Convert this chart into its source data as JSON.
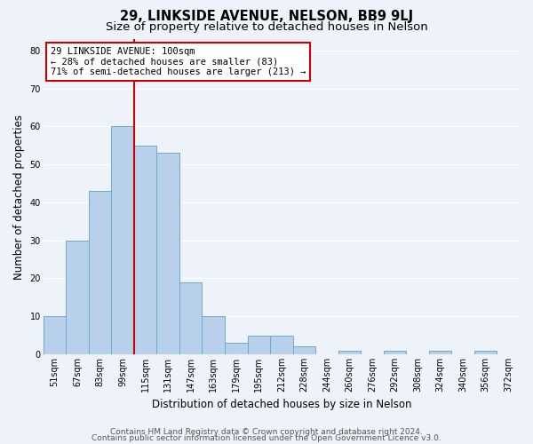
{
  "title": "29, LINKSIDE AVENUE, NELSON, BB9 9LJ",
  "subtitle": "Size of property relative to detached houses in Nelson",
  "xlabel": "Distribution of detached houses by size in Nelson",
  "ylabel": "Number of detached properties",
  "bin_labels": [
    "51sqm",
    "67sqm",
    "83sqm",
    "99sqm",
    "115sqm",
    "131sqm",
    "147sqm",
    "163sqm",
    "179sqm",
    "195sqm",
    "212sqm",
    "228sqm",
    "244sqm",
    "260sqm",
    "276sqm",
    "292sqm",
    "308sqm",
    "324sqm",
    "340sqm",
    "356sqm",
    "372sqm"
  ],
  "bar_values": [
    10,
    30,
    43,
    60,
    55,
    53,
    19,
    10,
    3,
    5,
    5,
    2,
    0,
    1,
    0,
    1,
    0,
    1,
    0,
    1,
    0
  ],
  "bar_color": "#b8d0ea",
  "bar_edgecolor": "#6aaad4",
  "ylim": [
    0,
    83
  ],
  "yticks": [
    0,
    10,
    20,
    30,
    40,
    50,
    60,
    70,
    80
  ],
  "property_line_color": "#cc0000",
  "annotation_title": "29 LINKSIDE AVENUE: 100sqm",
  "annotation_line1": "← 28% of detached houses are smaller (83)",
  "annotation_line2": "71% of semi-detached houses are larger (213) →",
  "annotation_box_facecolor": "#ffffff",
  "annotation_box_edgecolor": "#cc0000",
  "footer_line1": "Contains HM Land Registry data © Crown copyright and database right 2024.",
  "footer_line2": "Contains public sector information licensed under the Open Government Licence v3.0.",
  "background_color": "#eef2f9",
  "grid_color": "#ffffff",
  "title_fontsize": 10.5,
  "subtitle_fontsize": 9.5,
  "xlabel_fontsize": 8.5,
  "ylabel_fontsize": 8.5,
  "tick_fontsize": 7,
  "annotation_fontsize": 7.5,
  "footer_fontsize": 6.5
}
